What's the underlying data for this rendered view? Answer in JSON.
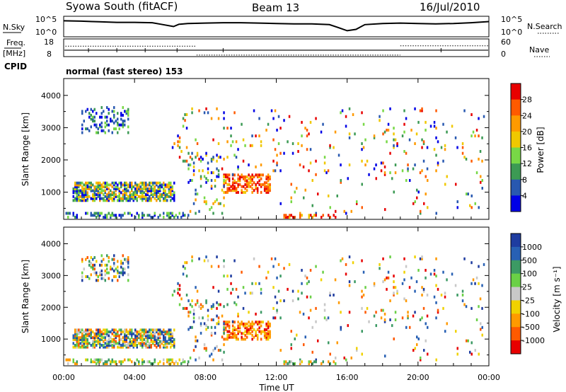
{
  "header": {
    "station_title": "Syowa South (fitACF)",
    "beam_label": "Beam 13",
    "date_label": "16/Jul/2010"
  },
  "noise_panel": {
    "left_label": "N.Sky",
    "left_ticks": [
      "10^5",
      "10^0"
    ],
    "right_ticks": [
      "10^5",
      "10^0"
    ],
    "right_label": "N.Search",
    "sky_trace": [
      [
        0,
        0.8
      ],
      [
        1,
        0.78
      ],
      [
        2,
        0.75
      ],
      [
        3,
        0.72
      ],
      [
        4,
        0.72
      ],
      [
        5,
        0.7
      ],
      [
        5.5,
        0.62
      ],
      [
        6.2,
        0.5
      ],
      [
        6.5,
        0.62
      ],
      [
        7,
        0.66
      ],
      [
        8,
        0.68
      ],
      [
        9,
        0.7
      ],
      [
        10,
        0.7
      ],
      [
        11,
        0.68
      ],
      [
        12,
        0.66
      ],
      [
        13,
        0.64
      ],
      [
        14,
        0.64
      ],
      [
        15,
        0.6
      ],
      [
        15.5,
        0.45
      ],
      [
        16,
        0.28
      ],
      [
        16.5,
        0.35
      ],
      [
        17,
        0.6
      ],
      [
        18,
        0.66
      ],
      [
        19,
        0.68
      ],
      [
        20,
        0.66
      ],
      [
        21,
        0.64
      ],
      [
        22,
        0.66
      ],
      [
        23,
        0.7
      ],
      [
        24,
        0.76
      ]
    ]
  },
  "freq_panel": {
    "left_label_top": "Freq.",
    "left_label_bottom": "[MHz]",
    "left_ticks": [
      "18",
      "8"
    ],
    "right_ticks": [
      "60",
      "0"
    ],
    "right_label": "Nave",
    "cpid_label": "CPID",
    "freq_level": 0.35,
    "nave_segments": [
      {
        "from": 0.1,
        "to": 7.5,
        "value": 0.6
      },
      {
        "from": 7.5,
        "to": 19.0,
        "value": 0.05
      },
      {
        "from": 19.0,
        "to": 24,
        "value": 0.62
      }
    ]
  },
  "cpid_text": "normal (fast stereo) 153",
  "power_panel": {
    "ylabel": "Slant Range [km]",
    "yticks": [
      "4000",
      "3000",
      "2000",
      "1000"
    ],
    "colorbar_label": "Power [dB]",
    "colorbar_ticks": [
      "28",
      "24",
      "20",
      "16",
      "12",
      "8",
      "4"
    ],
    "colorbar_colors": [
      "#e80000",
      "#ff5a00",
      "#ff9a00",
      "#f0c800",
      "#78d846",
      "#3c9a54",
      "#2858b0",
      "#0000e6"
    ]
  },
  "velocity_panel": {
    "ylabel": "Slant Range [km]",
    "yticks": [
      "4000",
      "3000",
      "2000",
      "1000"
    ],
    "colorbar_label": "Velocity [m s⁻¹]",
    "colorbar_ticks": [
      "1000",
      "500",
      "100",
      "25",
      "-25",
      "-100",
      "-500",
      "-1000"
    ],
    "colorbar_colors": [
      "#1e3ca0",
      "#2860b4",
      "#3c9a64",
      "#6ad046",
      "#c8c8c8",
      "#f0d200",
      "#ff9a00",
      "#ff5a00",
      "#e80000"
    ]
  },
  "x_axis": {
    "label": "Time UT",
    "ticks": [
      "00:00",
      "04:00",
      "08:00",
      "12:00",
      "16:00",
      "20:00",
      "00:00"
    ]
  },
  "chart_data": {
    "type": "heatmap",
    "x_range_hours": [
      0,
      24
    ],
    "y_range_km": [
      180,
      4500
    ],
    "regions": [
      {
        "name": "near-range band",
        "t": [
          0.5,
          6.2
        ],
        "r": [
          700,
          1300
        ],
        "density": 0.72,
        "pclass": "mid",
        "vclass": "mixed"
      },
      {
        "name": "ground scatter strip",
        "t": [
          0.1,
          7.0
        ],
        "r": [
          180,
          330
        ],
        "density": 0.35,
        "pclass": "low",
        "vclass": "slow"
      },
      {
        "name": "upper patch",
        "t": [
          1.0,
          3.6
        ],
        "r": [
          2800,
          3600
        ],
        "density": 0.25,
        "pclass": "low",
        "vclass": "mixed"
      },
      {
        "name": "afternoon echo",
        "t": [
          9.0,
          11.6
        ],
        "r": [
          950,
          1500
        ],
        "density": 0.55,
        "pclass": "high",
        "vclass": "neg"
      },
      {
        "name": "morning weak echoes",
        "t": [
          7.0,
          9.0
        ],
        "r": [
          300,
          2200
        ],
        "density": 0.12,
        "pclass": "mid",
        "vclass": "mixed"
      },
      {
        "name": "sporadic upper echoes",
        "t": [
          6.0,
          23.8
        ],
        "r": [
          1500,
          3600
        ],
        "density": 0.035,
        "pclass": "any",
        "vclass": "any"
      },
      {
        "name": "sporadic lower echoes",
        "t": [
          12.0,
          23.8
        ],
        "r": [
          300,
          1500
        ],
        "density": 0.02,
        "pclass": "any",
        "vclass": "any"
      },
      {
        "name": "low range strip",
        "t": [
          12.2,
          15.3
        ],
        "r": [
          180,
          300
        ],
        "density": 0.4,
        "pclass": "high",
        "vclass": "slow"
      }
    ]
  }
}
